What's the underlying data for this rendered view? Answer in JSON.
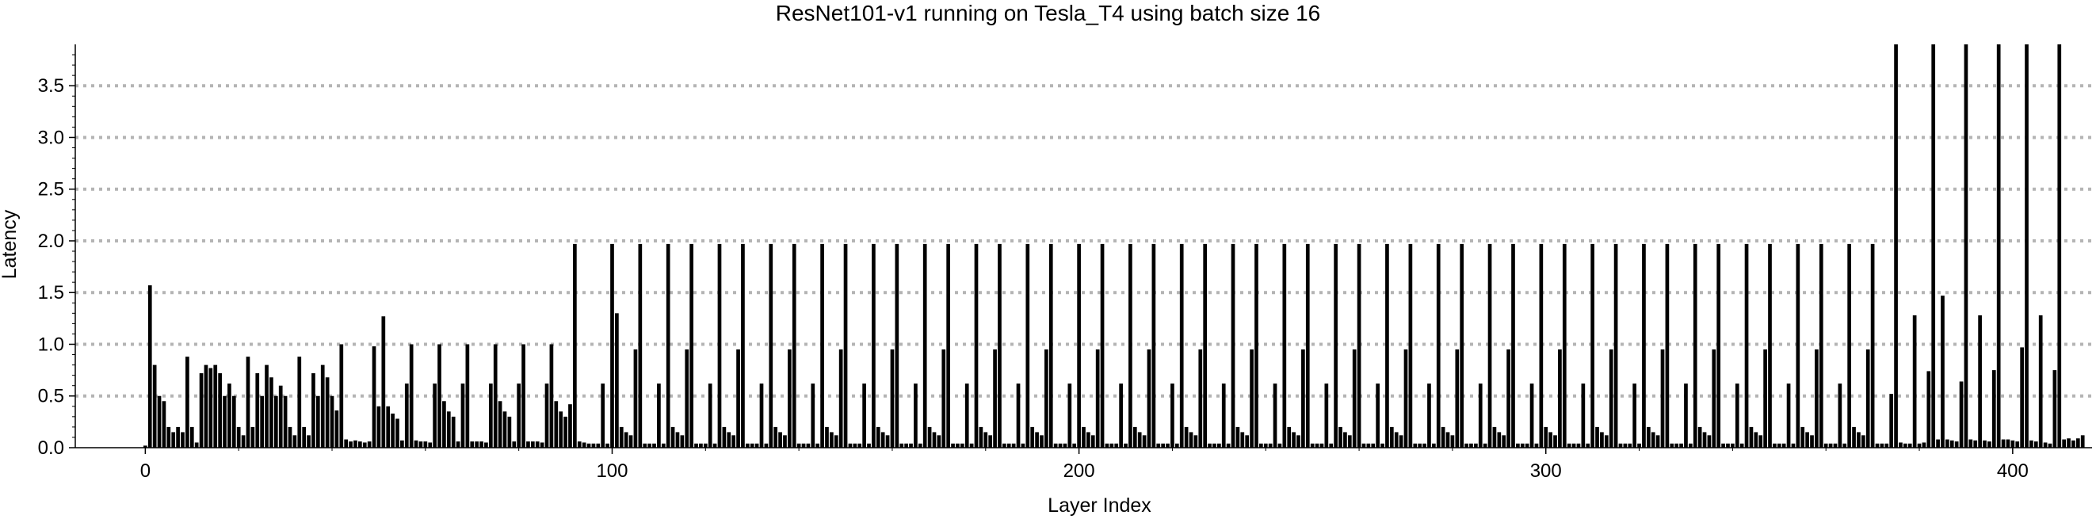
{
  "chart_data": {
    "type": "bar",
    "title": "ResNet101-v1 running on Tesla_T4 using batch size 16",
    "xlabel": "Layer Index",
    "ylabel": "Latency",
    "xlim": [
      -15,
      417
    ],
    "ylim": [
      0,
      3.9
    ],
    "xticks": [
      0,
      100,
      200,
      300,
      400
    ],
    "yticks": [
      0.0,
      0.5,
      1.0,
      1.5,
      2.0,
      2.5,
      3.0,
      3.5
    ],
    "ytick_labels": [
      "0.0",
      "0.5",
      "1.0",
      "1.5",
      "2.0",
      "2.5",
      "3.0",
      "3.5"
    ],
    "grid": "horizontal dotted",
    "bar_color": "#000000",
    "grid_color": "#b4b4b4",
    "clipped_at": 3.9,
    "values": [
      0.02,
      1.57,
      0.8,
      0.5,
      0.45,
      0.2,
      0.15,
      0.2,
      0.15,
      0.88,
      0.2,
      0.05,
      0.72,
      0.8,
      0.77,
      0.8,
      0.72,
      0.5,
      0.62,
      0.5,
      0.2,
      0.12,
      0.88,
      0.2,
      0.72,
      0.5,
      0.8,
      0.68,
      0.5,
      0.6,
      0.5,
      0.2,
      0.12,
      0.88,
      0.2,
      0.12,
      0.72,
      0.5,
      0.8,
      0.68,
      0.5,
      0.36,
      1.0,
      0.08,
      0.06,
      0.07,
      0.06,
      0.05,
      0.06,
      0.98,
      0.4,
      1.27,
      0.4,
      0.33,
      0.28,
      0.07,
      0.62,
      1.0,
      0.07,
      0.06,
      0.06,
      0.05,
      0.62,
      1.0,
      0.45,
      0.35,
      0.3,
      0.06,
      0.62,
      1.0,
      0.06,
      0.06,
      0.06,
      0.05,
      0.62,
      1.0,
      0.45,
      0.35,
      0.3,
      0.06,
      0.62,
      1.0,
      0.06,
      0.06,
      0.06,
      0.05,
      0.62,
      1.0,
      0.45,
      0.35,
      0.3,
      0.42,
      1.97,
      0.06,
      0.05,
      0.04,
      0.04,
      0.04,
      0.62,
      0.04,
      1.97,
      1.3,
      0.2,
      0.15,
      0.12,
      0.95,
      1.97,
      0.04,
      0.04,
      0.04,
      0.62,
      0.04,
      1.97,
      0.2,
      0.15,
      0.12,
      0.95,
      1.97,
      0.04,
      0.04,
      0.04,
      0.62,
      0.04,
      1.97,
      0.2,
      0.15,
      0.12,
      0.95,
      1.97,
      0.04,
      0.04,
      0.04,
      0.62,
      0.04,
      1.97,
      0.2,
      0.15,
      0.12,
      0.95,
      1.97,
      0.04,
      0.04,
      0.04,
      0.62,
      0.04,
      1.97,
      0.2,
      0.15,
      0.12,
      0.95,
      1.97,
      0.04,
      0.04,
      0.04,
      0.62,
      0.04,
      1.97,
      0.2,
      0.15,
      0.12,
      0.95,
      1.97,
      0.04,
      0.04,
      0.04,
      0.62,
      0.04,
      1.97,
      0.2,
      0.15,
      0.12,
      0.95,
      1.97,
      0.04,
      0.04,
      0.04,
      0.62,
      0.04,
      1.97,
      0.2,
      0.15,
      0.12,
      0.95,
      1.97,
      0.04,
      0.04,
      0.04,
      0.62,
      0.04,
      1.97,
      0.2,
      0.15,
      0.12,
      0.95,
      1.97,
      0.04,
      0.04,
      0.04,
      0.62,
      0.04,
      1.97,
      0.2,
      0.15,
      0.12,
      0.95,
      1.97,
      0.04,
      0.04,
      0.04,
      0.62,
      0.04,
      1.97,
      0.2,
      0.15,
      0.12,
      0.95,
      1.97,
      0.04,
      0.04,
      0.04,
      0.62,
      0.04,
      1.97,
      0.2,
      0.15,
      0.12,
      0.95,
      1.97,
      0.04,
      0.04,
      0.04,
      0.62,
      0.04,
      1.97,
      0.2,
      0.15,
      0.12,
      0.95,
      1.97,
      0.04,
      0.04,
      0.04,
      0.62,
      0.04,
      1.97,
      0.2,
      0.15,
      0.12,
      0.95,
      1.97,
      0.04,
      0.04,
      0.04,
      0.62,
      0.04,
      1.97,
      0.2,
      0.15,
      0.12,
      0.95,
      1.97,
      0.04,
      0.04,
      0.04,
      0.62,
      0.04,
      1.97,
      0.2,
      0.15,
      0.12,
      0.95,
      1.97,
      0.04,
      0.04,
      0.04,
      0.62,
      0.04,
      1.97,
      0.2,
      0.15,
      0.12,
      0.95,
      1.97,
      0.04,
      0.04,
      0.04,
      0.62,
      0.04,
      1.97,
      0.2,
      0.15,
      0.12,
      0.95,
      1.97,
      0.04,
      0.04,
      0.04,
      0.62,
      0.04,
      1.97,
      0.2,
      0.15,
      0.12,
      0.95,
      1.97,
      0.04,
      0.04,
      0.04,
      0.62,
      0.04,
      1.97,
      0.2,
      0.15,
      0.12,
      0.95,
      1.97,
      0.04,
      0.04,
      0.04,
      0.62,
      0.04,
      1.97,
      0.2,
      0.15,
      0.12,
      0.95,
      1.97,
      0.04,
      0.04,
      0.04,
      0.62,
      0.04,
      1.97,
      0.2,
      0.15,
      0.12,
      0.95,
      1.97,
      0.04,
      0.04,
      0.04,
      0.62,
      0.04,
      1.97,
      0.2,
      0.15,
      0.12,
      0.95,
      1.97,
      0.04,
      0.04,
      0.04,
      0.62,
      0.04,
      1.97,
      0.2,
      0.15,
      0.12,
      0.95,
      1.97,
      0.04,
      0.04,
      0.04,
      0.62,
      0.04,
      1.97,
      0.2,
      0.15,
      0.12,
      0.95,
      1.97,
      0.04,
      0.04,
      0.04,
      0.52,
      3.9,
      0.05,
      0.04,
      0.04,
      1.28,
      0.04,
      0.05,
      0.74,
      3.9,
      0.08,
      1.47,
      0.08,
      0.07,
      0.06,
      0.64,
      3.9,
      0.08,
      0.07,
      1.28,
      0.07,
      0.06,
      0.75,
      3.9,
      0.08,
      0.08,
      0.07,
      0.06,
      0.97,
      3.9,
      0.07,
      0.06,
      1.28,
      0.05,
      0.04,
      0.75,
      3.9,
      0.08,
      0.09,
      0.07,
      0.09,
      0.12
    ]
  }
}
